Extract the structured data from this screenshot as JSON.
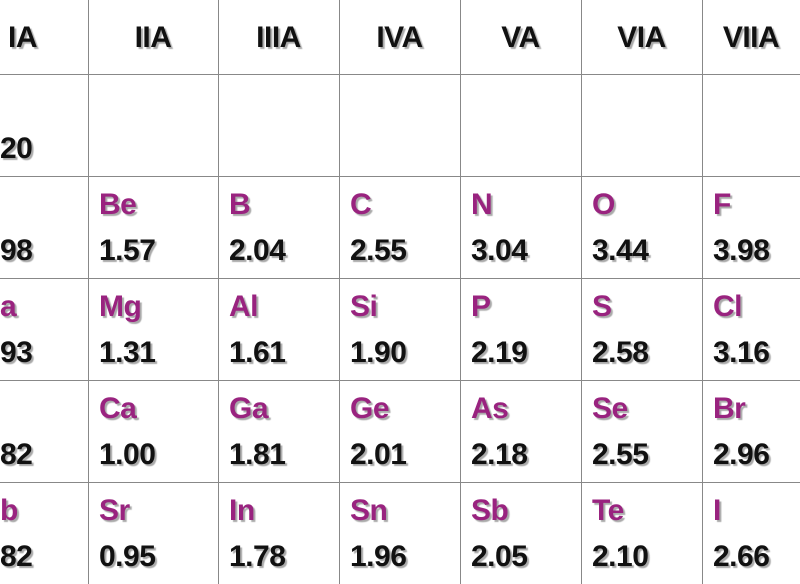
{
  "table": {
    "header": [
      "IA",
      "IIA",
      "IIIA",
      "IVA",
      "VA",
      "VIA",
      "VIIA"
    ],
    "rows": [
      [
        {
          "value": "20"
        },
        null,
        null,
        null,
        null,
        null,
        null
      ],
      [
        {
          "value": "98"
        },
        {
          "symbol": "Be",
          "value": "1.57"
        },
        {
          "symbol": "B",
          "value": "2.04"
        },
        {
          "symbol": "C",
          "value": "2.55"
        },
        {
          "symbol": "N",
          "value": "3.04"
        },
        {
          "symbol": "O",
          "value": "3.44"
        },
        {
          "symbol": "F",
          "value": "3.98"
        }
      ],
      [
        {
          "symbol": "a",
          "value": "93"
        },
        {
          "symbol": "Mg",
          "value": "1.31"
        },
        {
          "symbol": "Al",
          "value": "1.61"
        },
        {
          "symbol": "Si",
          "value": "1.90"
        },
        {
          "symbol": "P",
          "value": "2.19"
        },
        {
          "symbol": "S",
          "value": "2.58"
        },
        {
          "symbol": "Cl",
          "value": "3.16"
        }
      ],
      [
        {
          "value": "82"
        },
        {
          "symbol": "Ca",
          "value": "1.00"
        },
        {
          "symbol": "Ga",
          "value": "1.81"
        },
        {
          "symbol": "Ge",
          "value": "2.01"
        },
        {
          "symbol": "As",
          "value": "2.18"
        },
        {
          "symbol": "Se",
          "value": "2.55"
        },
        {
          "symbol": "Br",
          "value": "2.96"
        }
      ],
      [
        {
          "symbol": "b",
          "value": "82"
        },
        {
          "symbol": "Sr",
          "value": "0.95"
        },
        {
          "symbol": "In",
          "value": "1.78"
        },
        {
          "symbol": "Sn",
          "value": "1.96"
        },
        {
          "symbol": "Sb",
          "value": "2.05"
        },
        {
          "symbol": "Te",
          "value": "2.10"
        },
        {
          "symbol": "I",
          "value": "2.66"
        }
      ]
    ]
  }
}
